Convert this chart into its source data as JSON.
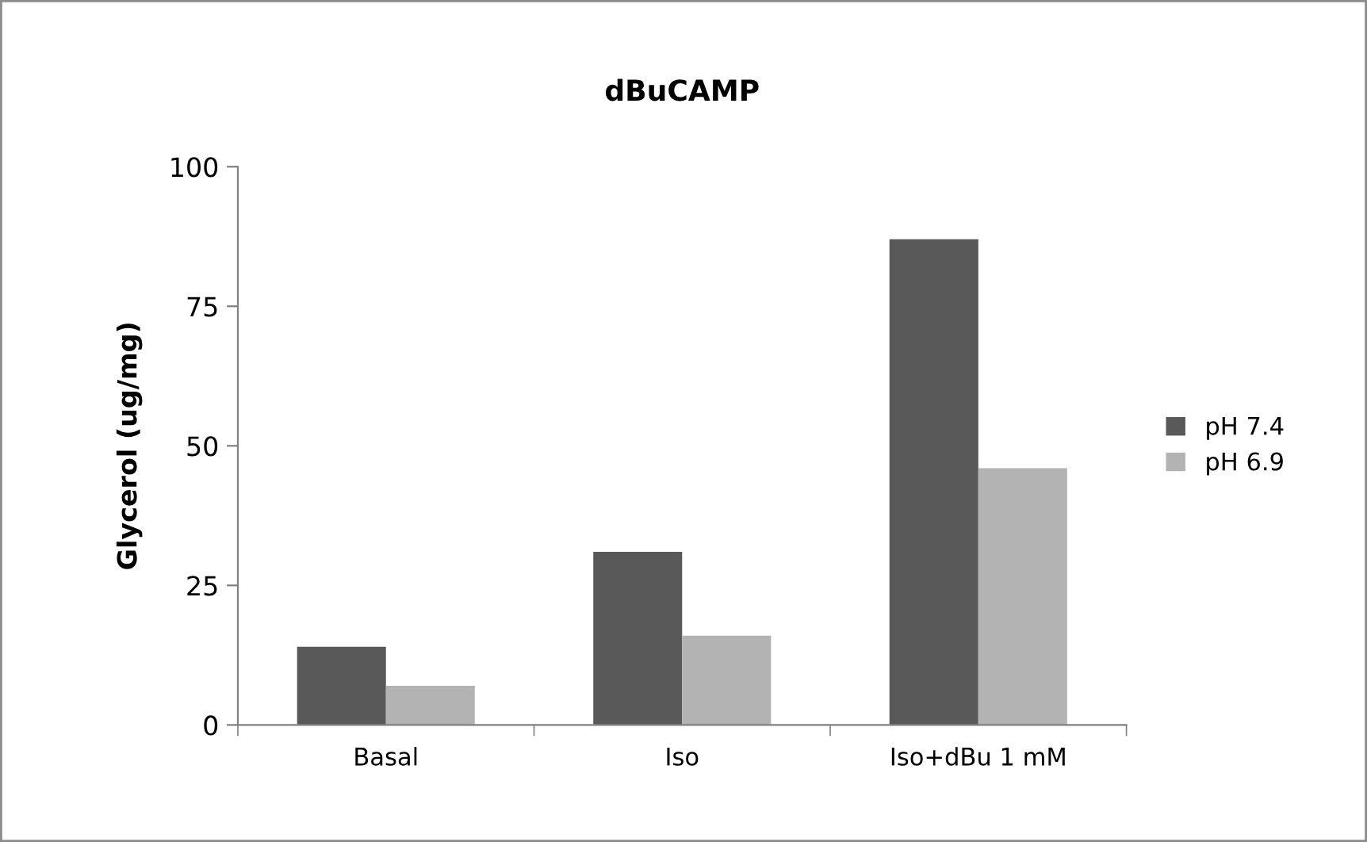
{
  "chart_data": {
    "type": "bar",
    "title": "dBuCAMP",
    "ylabel": "Glycerol (ug/mg)",
    "categories": [
      "Basal",
      "Iso",
      "Iso+dBu 1 mM"
    ],
    "series": [
      {
        "name": "pH 7.4",
        "color": "#595959",
        "values": [
          14,
          31,
          87
        ]
      },
      {
        "name": "pH 6.9",
        "color": "#b3b3b3",
        "values": [
          7,
          16,
          46
        ]
      }
    ],
    "ylim": [
      0,
      100
    ],
    "yticks": [
      0,
      25,
      50,
      75,
      100
    ],
    "grid": false,
    "legend": "right"
  }
}
